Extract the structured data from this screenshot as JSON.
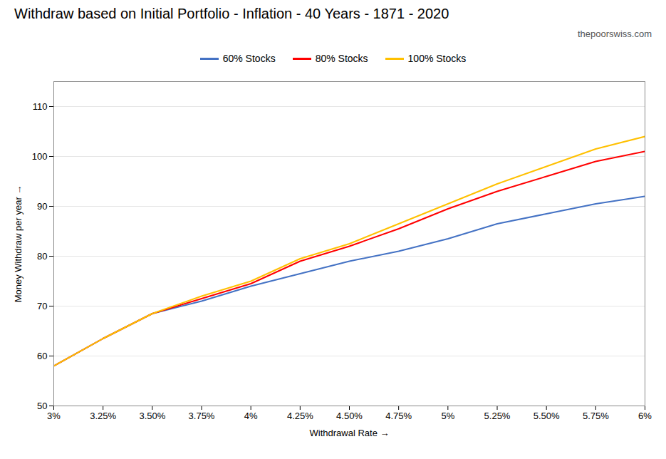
{
  "chart_data": {
    "type": "line",
    "title": "Withdraw based on Initial Portfolio - Inflation - 40 Years - 1871 - 2020",
    "annotations": [
      {
        "text": "thepoorswiss.com"
      }
    ],
    "xlabel": "Withdrawal Rate",
    "ylabel": "Money Withdraw per year",
    "x": [
      3.0,
      3.25,
      3.5,
      3.75,
      4.0,
      4.25,
      4.5,
      4.75,
      5.0,
      5.25,
      5.5,
      5.75,
      6.0
    ],
    "series": [
      {
        "name": "60% Stocks",
        "color": "#4472C4",
        "values": [
          58.0,
          63.5,
          68.5,
          71.0,
          74.0,
          76.5,
          79.0,
          81.0,
          83.5,
          86.5,
          88.5,
          90.5,
          92.0
        ]
      },
      {
        "name": "80% Stocks",
        "color": "#FF0000",
        "values": [
          58.0,
          63.5,
          68.5,
          71.5,
          74.5,
          79.0,
          82.0,
          85.5,
          89.5,
          93.0,
          96.0,
          99.0,
          101.0
        ]
      },
      {
        "name": "100% Stocks",
        "color": "#FFC000",
        "values": [
          58.0,
          63.5,
          68.5,
          72.0,
          75.0,
          79.5,
          82.5,
          86.5,
          90.5,
          94.5,
          98.0,
          101.5,
          104.0
        ]
      }
    ],
    "xlim": [
      3,
      6
    ],
    "xticks": [
      {
        "value": 3.0,
        "label": "3%"
      },
      {
        "value": 3.25,
        "label": "3.25%"
      },
      {
        "value": 3.5,
        "label": "3.50%"
      },
      {
        "value": 3.75,
        "label": "3.75%"
      },
      {
        "value": 4.0,
        "label": "4%"
      },
      {
        "value": 4.25,
        "label": "4.25%"
      },
      {
        "value": 4.5,
        "label": "4.50%"
      },
      {
        "value": 4.75,
        "label": "4.75%"
      },
      {
        "value": 5.0,
        "label": "5%"
      },
      {
        "value": 5.25,
        "label": "5.25%"
      },
      {
        "value": 5.5,
        "label": "5.50%"
      },
      {
        "value": 5.75,
        "label": "5.75%"
      },
      {
        "value": 6.0,
        "label": "6%"
      }
    ],
    "ylim": [
      50,
      115
    ],
    "yticks": [
      50,
      60,
      70,
      80,
      90,
      100,
      110
    ],
    "grid": true,
    "legend": "upper center"
  }
}
